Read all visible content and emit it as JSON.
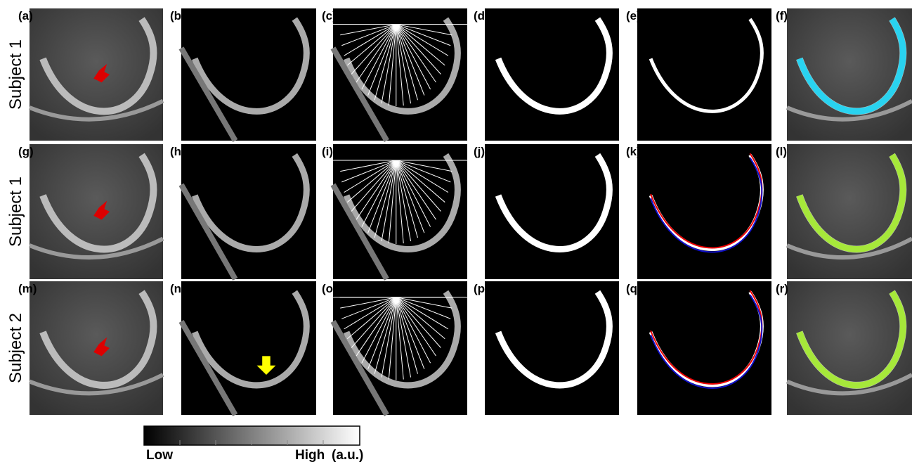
{
  "panels": [
    {
      "label": "(a)"
    },
    {
      "label": "(b)"
    },
    {
      "label": "(c)"
    },
    {
      "label": "(d)"
    },
    {
      "label": "(e)"
    },
    {
      "label": "(f)"
    },
    {
      "label": "(g)"
    },
    {
      "label": "(h)"
    },
    {
      "label": "(i)"
    },
    {
      "label": "(j)"
    },
    {
      "label": "(k)"
    },
    {
      "label": "(l)"
    },
    {
      "label": "(m)"
    },
    {
      "label": "(n)"
    },
    {
      "label": "(o)"
    },
    {
      "label": "(p)"
    },
    {
      "label": "(q)"
    },
    {
      "label": "(r)"
    }
  ],
  "rows": [
    {
      "label": "Subject 1"
    },
    {
      "label": "Subject 1"
    },
    {
      "label": "Subject 2"
    }
  ],
  "colorbar": {
    "low": "Low",
    "high": "High",
    "unit": "(a.u.)"
  }
}
